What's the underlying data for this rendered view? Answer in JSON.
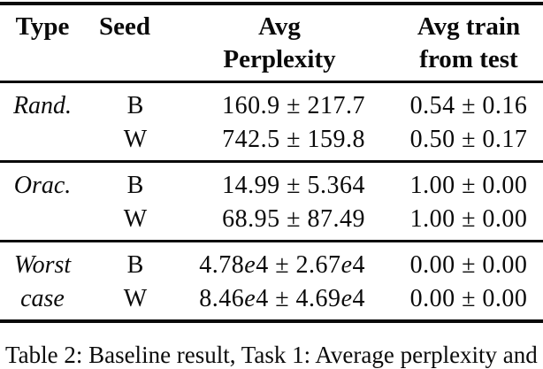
{
  "page": {
    "background": "#ffffff",
    "text_color": "#0a0a0a"
  },
  "table": {
    "header": {
      "type": "Type",
      "seed": "Seed",
      "perplexity": "Avg\nPerplexity",
      "train_from_test": "Avg train\nfrom test"
    },
    "sections": [
      {
        "type_line1": "Rand.",
        "type_line2": "",
        "rows": [
          {
            "seed": "B",
            "avg_perplexity": "160.9 ± 217.7",
            "avg_train_from_test": "0.54 ± 0.16"
          },
          {
            "seed": "W",
            "avg_perplexity": "742.5 ± 159.8",
            "avg_train_from_test": "0.50 ± 0.17"
          }
        ]
      },
      {
        "type_line1": "Orac.",
        "type_line2": "",
        "rows": [
          {
            "seed": "B",
            "avg_perplexity": "14.99 ± 5.364",
            "avg_train_from_test": "1.00 ± 0.00"
          },
          {
            "seed": "W",
            "avg_perplexity": "68.95 ± 87.49",
            "avg_train_from_test": "1.00 ± 0.00"
          }
        ]
      },
      {
        "type_line1": "Worst",
        "type_line2": "case",
        "rows": [
          {
            "seed": "B",
            "avg_perplexity": "4.78e4 ± 2.67e4",
            "avg_train_from_test": "0.00 ± 0.00"
          },
          {
            "seed": "W",
            "avg_perplexity": "8.46e4 ± 4.69e4",
            "avg_train_from_test": "0.00 ± 0.00"
          }
        ]
      }
    ]
  },
  "caption": {
    "text": "Table 2: Baseline result, Task 1: Average perplexity and"
  }
}
